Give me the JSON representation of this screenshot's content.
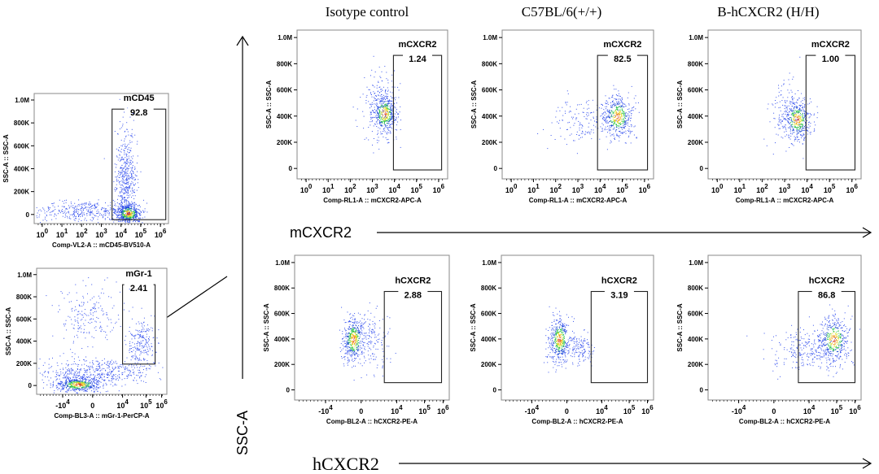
{
  "figure": {
    "column_titles": [
      "Isotype control",
      "C57BL/6(+/+)",
      "B-hCXCR2 (H/H)"
    ],
    "y_arrow_label": "SSC-A",
    "row_arrow_labels": [
      "mCXCR2",
      "hCXCR2"
    ]
  },
  "chart_data": [
    {
      "id": "gating-mcd45",
      "type": "scatter",
      "title": "",
      "xlabel": "Comp-VL2-A :: mCD45-BV510-A",
      "ylabel": "SSC-A :: SSC-A",
      "x_scale": "log",
      "x_ticks": [
        "10^0",
        "10^1",
        "10^2",
        "10^3",
        "10^4",
        "10^5",
        "10^6"
      ],
      "y_ticks": [
        "0",
        "200K",
        "400K",
        "600K",
        "800K",
        "1.0M"
      ],
      "ylim": [
        0,
        1000000
      ],
      "gate": {
        "name": "mCD45",
        "percent": "92.8",
        "x_range": [
          4000,
          700000
        ],
        "y_range": [
          20000,
          820000
        ]
      },
      "populations": [
        {
          "x_log": 4.4,
          "y": 60000,
          "spread_x": 0.25,
          "spread_y": 40000,
          "density": "high"
        },
        {
          "x_log": 4.3,
          "y": 350000,
          "spread_x": 0.2,
          "spread_y": 200000,
          "density": "medium"
        },
        {
          "x_log": 2.2,
          "y": 80000,
          "spread_x": 1.0,
          "spread_y": 50000,
          "density": "low"
        }
      ]
    },
    {
      "id": "gating-mgr1",
      "type": "scatter",
      "xlabel": "Comp-BL3-A :: mGr-1-PerCP-A",
      "ylabel": "SSC-A :: SSC-A",
      "x_scale": "biexponential",
      "x_ticks": [
        "-10^4",
        "0",
        "10^4",
        "10^5",
        "10^6"
      ],
      "y_ticks": [
        "0",
        "200K",
        "400K",
        "600K",
        "800K",
        "1.0M"
      ],
      "ylim": [
        0,
        1000000
      ],
      "gate": {
        "name": "mGr-1",
        "percent": "2.41"
      },
      "populations": [
        {
          "x": 0.5,
          "y": 60000,
          "density": "high"
        },
        {
          "x": 4.5,
          "y": 350000,
          "density": "medium"
        },
        {
          "x": 1.2,
          "y": 600000,
          "density": "low"
        }
      ]
    },
    {
      "id": "isotype-mcxcr2",
      "type": "scatter",
      "column": "Isotype control",
      "xlabel": "Comp-RL1-A :: mCXCR2-APC-A",
      "ylabel": "SSC-A :: SSC-A",
      "x_scale": "log",
      "x_ticks": [
        "10^0",
        "10^1",
        "10^2",
        "10^3",
        "10^4",
        "10^5",
        "10^6"
      ],
      "y_ticks": [
        "0",
        "200K",
        "400K",
        "600K",
        "800K",
        "1.0M"
      ],
      "ylim": [
        0,
        1000000
      ],
      "gate": {
        "name": "mCXCR2",
        "percent": "1.24"
      },
      "populations": [
        {
          "x_log": 3.4,
          "y": 400000,
          "density": "high"
        }
      ]
    },
    {
      "id": "wt-mcxcr2",
      "type": "scatter",
      "column": "C57BL/6(+/+)",
      "xlabel": "Comp-RL1-A :: mCXCR2-APC-A",
      "ylabel": "SSC-A :: SSC-A",
      "x_scale": "log",
      "x_ticks": [
        "10^0",
        "10^1",
        "10^2",
        "10^3",
        "10^4",
        "10^5",
        "10^6"
      ],
      "y_ticks": [
        "0",
        "200K",
        "400K",
        "600K",
        "800K",
        "1.0M"
      ],
      "ylim": [
        0,
        1000000
      ],
      "gate": {
        "name": "mCXCR2",
        "percent": "82.5"
      },
      "populations": [
        {
          "x_log": 4.5,
          "y": 380000,
          "density": "high"
        }
      ]
    },
    {
      "id": "humanized-mcxcr2",
      "type": "scatter",
      "column": "B-hCXCR2 (H/H)",
      "xlabel": "Comp-RL1-A :: mCXCR2-APC-A",
      "ylabel": "SSC-A :: SSC-A",
      "x_scale": "log",
      "x_ticks": [
        "10^0",
        "10^1",
        "10^2",
        "10^3",
        "10^4",
        "10^5",
        "10^6"
      ],
      "y_ticks": [
        "0",
        "200K",
        "400K",
        "600K",
        "800K",
        "1.0M"
      ],
      "ylim": [
        0,
        1000000
      ],
      "gate": {
        "name": "mCXCR2",
        "percent": "1.00"
      },
      "populations": [
        {
          "x_log": 3.4,
          "y": 350000,
          "density": "high"
        }
      ]
    },
    {
      "id": "isotype-hcxcr2",
      "type": "scatter",
      "column": "Isotype control",
      "xlabel": "Comp-BL2-A :: hCXCR2-PE-A",
      "ylabel": "SSC-A :: SSC-A",
      "x_scale": "biexponential",
      "x_ticks": [
        "-10^4",
        "0",
        "10^4",
        "10^5",
        "10^6"
      ],
      "y_ticks": [
        "0",
        "200K",
        "400K",
        "600K",
        "800K",
        "1.0M"
      ],
      "ylim": [
        0,
        1000000
      ],
      "gate": {
        "name": "hCXCR2",
        "percent": "2.88"
      },
      "populations": [
        {
          "x": 0,
          "y": 380000,
          "density": "high"
        }
      ]
    },
    {
      "id": "wt-hcxcr2",
      "type": "scatter",
      "column": "C57BL/6(+/+)",
      "xlabel": "Comp-BL2-A :: hCXCR2-PE-A",
      "ylabel": "SSC-A :: SSC-A",
      "x_scale": "biexponential",
      "x_ticks": [
        "-10^4",
        "0",
        "10^4",
        "10^5",
        "10^6"
      ],
      "y_ticks": [
        "0",
        "200K",
        "400K",
        "600K",
        "800K",
        "1.0M"
      ],
      "ylim": [
        0,
        1000000
      ],
      "gate": {
        "name": "hCXCR2",
        "percent": "3.19"
      },
      "populations": [
        {
          "x": 0,
          "y": 380000,
          "density": "high"
        }
      ]
    },
    {
      "id": "humanized-hcxcr2",
      "type": "scatter",
      "column": "B-hCXCR2 (H/H)",
      "xlabel": "Comp-BL2-A :: hCXCR2-PE-A",
      "ylabel": "SSC-A :: SSC-A",
      "x_scale": "biexponential",
      "x_ticks": [
        "-10^4",
        "0",
        "10^4",
        "10^5",
        "10^6"
      ],
      "y_ticks": [
        "0",
        "200K",
        "400K",
        "600K",
        "800K",
        "1.0M"
      ],
      "ylim": [
        0,
        1000000
      ],
      "gate": {
        "name": "hCXCR2",
        "percent": "86.8"
      },
      "populations": [
        {
          "x_log": 4.8,
          "y": 380000,
          "density": "high"
        }
      ]
    }
  ]
}
